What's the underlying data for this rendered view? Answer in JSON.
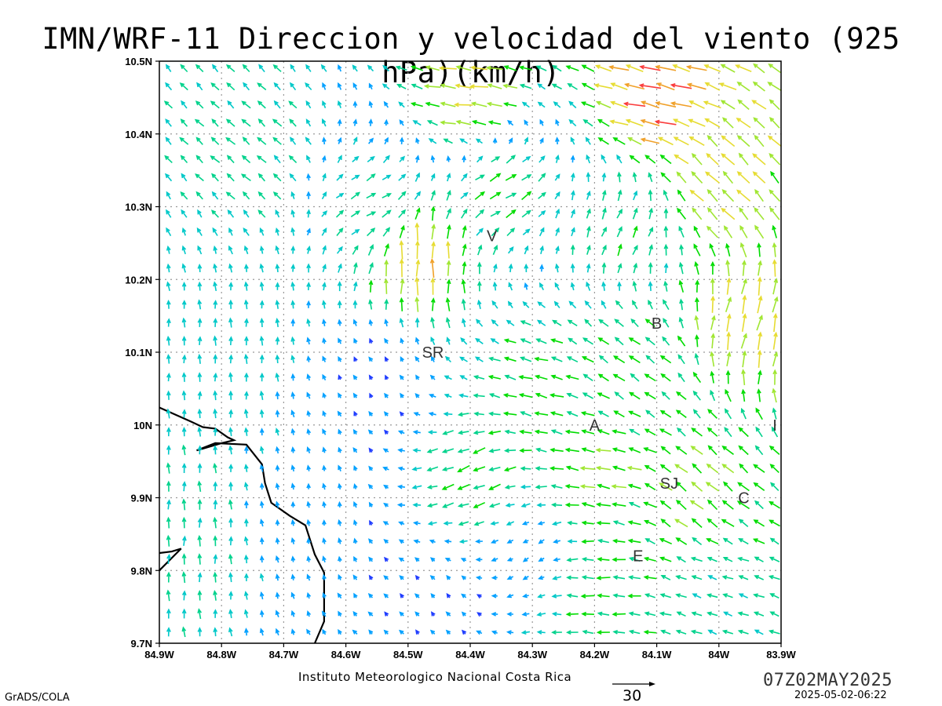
{
  "title": "IMN/WRF-11 Direccion y velocidad del viento (925 hPa)(km/h)",
  "footer": {
    "institute": "Instituto Meteorologico Nacional Costa Rica",
    "scale_value": "30",
    "valid_time": "07Z02MAY2025",
    "issued": "2025-05-02-06:22",
    "software": "GrADS/COLA"
  },
  "axes": {
    "lon_ticks": [
      "84.9W",
      "84.8W",
      "84.7W",
      "84.6W",
      "84.5W",
      "84.4W",
      "84.3W",
      "84.2W",
      "84.1W",
      "84W",
      "83.9W"
    ],
    "lat_ticks": [
      "10.5N",
      "10.4N",
      "10.3N",
      "10.2N",
      "10.1N",
      "10N",
      "9.9N",
      "9.8N",
      "9.7N"
    ],
    "lon_range": [
      -84.9,
      -83.9
    ],
    "lat_range": [
      9.7,
      10.5
    ],
    "grid": true
  },
  "stations": [
    {
      "id": "V",
      "lon": -84.365,
      "lat": 10.26
    },
    {
      "id": "SR",
      "lon": -84.46,
      "lat": 10.1
    },
    {
      "id": "B",
      "lon": -84.1,
      "lat": 10.14
    },
    {
      "id": "A",
      "lon": -84.2,
      "lat": 10.0
    },
    {
      "id": "I",
      "lon": -83.91,
      "lat": 10.0
    },
    {
      "id": "SJ",
      "lon": -84.08,
      "lat": 9.92
    },
    {
      "id": "C",
      "lon": -83.96,
      "lat": 9.9
    },
    {
      "id": "E",
      "lon": -84.13,
      "lat": 9.82
    }
  ],
  "wind_colors": [
    "#8000c8",
    "#1e3cff",
    "#00a0ff",
    "#00c8c8",
    "#00d28c",
    "#00dc00",
    "#a0e632",
    "#e6dc32",
    "#f0a028",
    "#fa3c3c"
  ],
  "wind_regions": [
    {
      "lon": -84.4,
      "lat": 10.45,
      "u": -22,
      "v": 3
    },
    {
      "lon": -84.1,
      "lat": 10.45,
      "u": -26,
      "v": 6
    },
    {
      "lon": -84.0,
      "lat": 10.33,
      "u": -15,
      "v": 15
    },
    {
      "lon": -84.75,
      "lat": 10.38,
      "u": -10,
      "v": 9
    },
    {
      "lon": -84.55,
      "lat": 10.3,
      "u": 12,
      "v": 6
    },
    {
      "lon": -84.49,
      "lat": 10.23,
      "u": 0,
      "v": 24
    },
    {
      "lon": -84.35,
      "lat": 10.33,
      "u": 14,
      "v": 8
    },
    {
      "lon": -84.15,
      "lat": 10.27,
      "u": 6,
      "v": 13
    },
    {
      "lon": -83.95,
      "lat": 10.15,
      "u": 5,
      "v": 22
    },
    {
      "lon": -84.8,
      "lat": 10.1,
      "u": 0,
      "v": 11
    },
    {
      "lon": -84.87,
      "lat": 9.85,
      "u": 0,
      "v": 13
    },
    {
      "lon": -84.65,
      "lat": 9.88,
      "u": -1,
      "v": 7
    },
    {
      "lon": -84.55,
      "lat": 10.08,
      "u": -3,
      "v": 5
    },
    {
      "lon": -84.3,
      "lat": 10.05,
      "u": -16,
      "v": 4
    },
    {
      "lon": -84.15,
      "lat": 10.08,
      "u": -13,
      "v": 9
    },
    {
      "lon": -84.4,
      "lat": 9.93,
      "u": -15,
      "v": -6
    },
    {
      "lon": -84.2,
      "lat": 9.93,
      "u": -18,
      "v": 3
    },
    {
      "lon": -84.03,
      "lat": 9.9,
      "u": -14,
      "v": 12
    },
    {
      "lon": -84.3,
      "lat": 9.82,
      "u": -6,
      "v": -4
    },
    {
      "lon": -84.2,
      "lat": 9.78,
      "u": -16,
      "v": 1
    },
    {
      "lon": -84.0,
      "lat": 9.78,
      "u": -12,
      "v": 4
    },
    {
      "lon": -84.45,
      "lat": 9.76,
      "u": -4,
      "v": 5
    }
  ],
  "coastline": [
    [
      -84.9,
      10.024
    ],
    [
      -84.85,
      10.005
    ],
    [
      -84.83,
      9.997
    ],
    [
      -84.81,
      9.995
    ],
    [
      -84.79,
      9.983
    ],
    [
      -84.78,
      9.979
    ],
    [
      -84.8,
      9.975
    ],
    [
      -84.84,
      9.965
    ],
    [
      -84.81,
      9.975
    ],
    [
      -84.76,
      9.973
    ],
    [
      -84.735,
      9.946
    ],
    [
      -84.73,
      9.92
    ],
    [
      -84.72,
      9.893
    ],
    [
      -84.69,
      9.875
    ],
    [
      -84.665,
      9.862
    ],
    [
      -84.65,
      9.822
    ],
    [
      -84.635,
      9.797
    ],
    [
      -84.635,
      9.73
    ],
    [
      -84.65,
      9.7
    ]
  ],
  "coastline_islet": [
    [
      -84.9,
      9.824
    ],
    [
      -84.88,
      9.826
    ],
    [
      -84.865,
      9.83
    ],
    [
      -84.9,
      9.8
    ]
  ]
}
